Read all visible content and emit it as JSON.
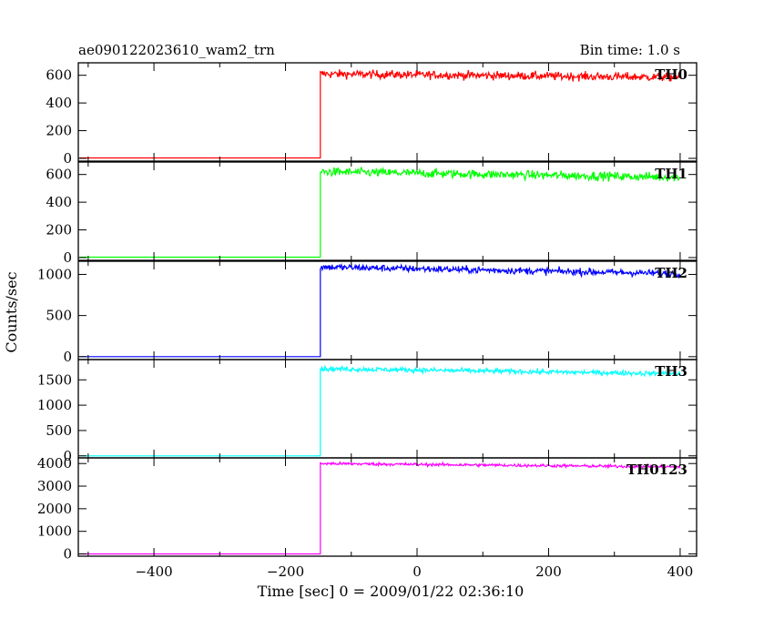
{
  "header": {
    "title": "ae090122023610_wam2_trn",
    "bin_time": "Bin time: 1.0 s"
  },
  "chart_data": {
    "type": "line",
    "xlabel": "Time [sec] 0 = 2009/01/22 02:36:10",
    "ylabel": "Counts/sec",
    "xlim": [
      -515,
      425
    ],
    "x_ticks": [
      -400,
      -200,
      0,
      200,
      400
    ],
    "x_tick_labels": [
      "−400",
      "−200",
      "0",
      "200",
      "400"
    ],
    "onset_x": -147,
    "panels": [
      {
        "name": "TH0",
        "color": "#ff0000",
        "ylim": [
          -20,
          690
        ],
        "y_ticks": [
          0,
          200,
          400,
          600
        ],
        "y_tick_labels": [
          "0",
          "200",
          "400",
          "600"
        ],
        "baseline": 3,
        "start_level": 610,
        "end_level": 585,
        "noise": 25
      },
      {
        "name": "TH1",
        "color": "#00ff00",
        "ylim": [
          -20,
          690
        ],
        "y_ticks": [
          0,
          200,
          400,
          600
        ],
        "y_tick_labels": [
          "0",
          "200",
          "400",
          "600"
        ],
        "baseline": 3,
        "start_level": 620,
        "end_level": 580,
        "noise": 26
      },
      {
        "name": "TH2",
        "color": "#0000ff",
        "ylim": [
          -35,
          1160
        ],
        "y_ticks": [
          0,
          500,
          1000
        ],
        "y_tick_labels": [
          "0",
          "500",
          "1000"
        ],
        "baseline": 0,
        "start_level": 1090,
        "end_level": 1010,
        "noise": 35
      },
      {
        "name": "TH3",
        "color": "#00ffff",
        "ylim": [
          -40,
          1900
        ],
        "y_ticks": [
          0,
          500,
          1000,
          1500
        ],
        "y_tick_labels": [
          "0",
          "500",
          "1000",
          "1500"
        ],
        "baseline": 0,
        "start_level": 1720,
        "end_level": 1620,
        "noise": 40
      },
      {
        "name": "TH0123",
        "color": "#ff00ff",
        "ylim": [
          -100,
          4250
        ],
        "y_ticks": [
          0,
          1000,
          2000,
          3000,
          4000
        ],
        "y_tick_labels": [
          "0",
          "1000",
          "2000",
          "3000",
          "4000"
        ],
        "baseline": 0,
        "start_level": 4000,
        "end_level": 3850,
        "noise": 55
      }
    ]
  }
}
